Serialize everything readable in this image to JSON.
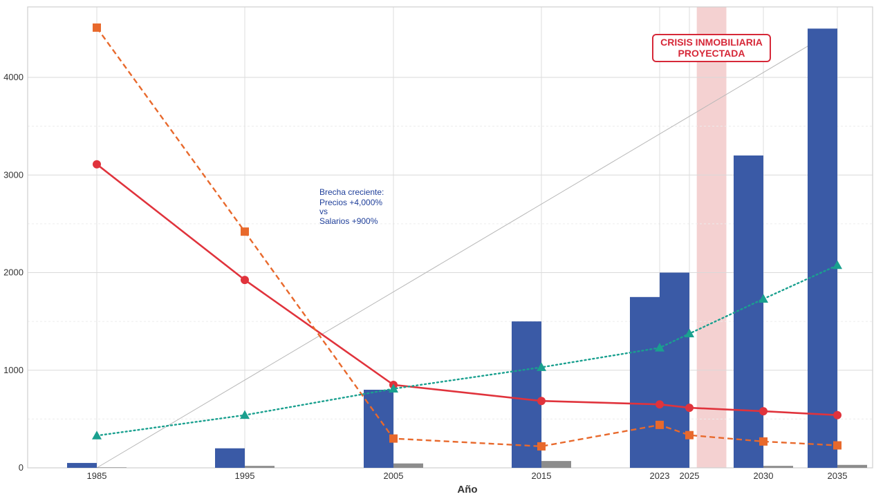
{
  "chart_data": {
    "type": "bar",
    "title": "",
    "xlabel": "Año",
    "ylabel": "",
    "ylim": [
      0,
      4700
    ],
    "yticks": [
      0,
      1000,
      2000,
      3000,
      4000
    ],
    "x_ticks": [
      "1985",
      "1995",
      "2005",
      "2015",
      "2023",
      "2025",
      "2030",
      "2035"
    ],
    "x_years": [
      1985,
      1995,
      2005,
      2015,
      2023,
      2025,
      2030,
      2035
    ],
    "grid": true,
    "legend": "none",
    "bar_series": [
      {
        "color": "#3a5aa6",
        "years": [
          1985,
          1995,
          2005,
          2015,
          2023,
          2025,
          2030,
          2035
        ],
        "values": [
          50,
          200,
          800,
          1500,
          1750,
          2000,
          3200,
          4500
        ]
      },
      {
        "color": "#8c8c8c",
        "years": [
          1985,
          1995,
          2005,
          2015,
          2023,
          2025,
          2030,
          2035
        ],
        "values": [
          5,
          20,
          45,
          70,
          0,
          0,
          20,
          30
        ]
      }
    ],
    "line_series": [
      {
        "color": "#e0333c",
        "style": "solid",
        "marker": "circle",
        "years": [
          1985,
          1995,
          2005,
          2015,
          2023,
          2025,
          2030,
          2035
        ],
        "values": [
          3110,
          1925,
          850,
          685,
          650,
          615,
          580,
          540
        ]
      },
      {
        "color": "#e8692c",
        "style": "dashed",
        "marker": "square",
        "years": [
          1985,
          1995,
          2005,
          2015,
          2023,
          2025,
          2030,
          2035
        ],
        "values": [
          4510,
          2420,
          300,
          220,
          440,
          335,
          270,
          230
        ]
      },
      {
        "color": "#1aa08f",
        "style": "dotted",
        "marker": "triangle",
        "years": [
          1985,
          1995,
          2005,
          2015,
          2023,
          2025,
          2030,
          2035
        ],
        "values": [
          330,
          540,
          810,
          1030,
          1230,
          1375,
          1730,
          2075
        ]
      }
    ],
    "trend_line": {
      "color": "#b8b8b8",
      "from": [
        1985,
        0
      ],
      "to": [
        2035,
        4500
      ]
    },
    "shaded_band": {
      "from_year": 2025.5,
      "to_year": 2027.5,
      "color": "#f2c9c9"
    },
    "annotations": {
      "gap_note": [
        "Brecha creciente:",
        "Precios +4,000%",
        "vs",
        "Salarios +900%"
      ],
      "crisis_label": [
        "CRISIS INMOBILIARIA",
        "PROYECTADA"
      ]
    }
  }
}
